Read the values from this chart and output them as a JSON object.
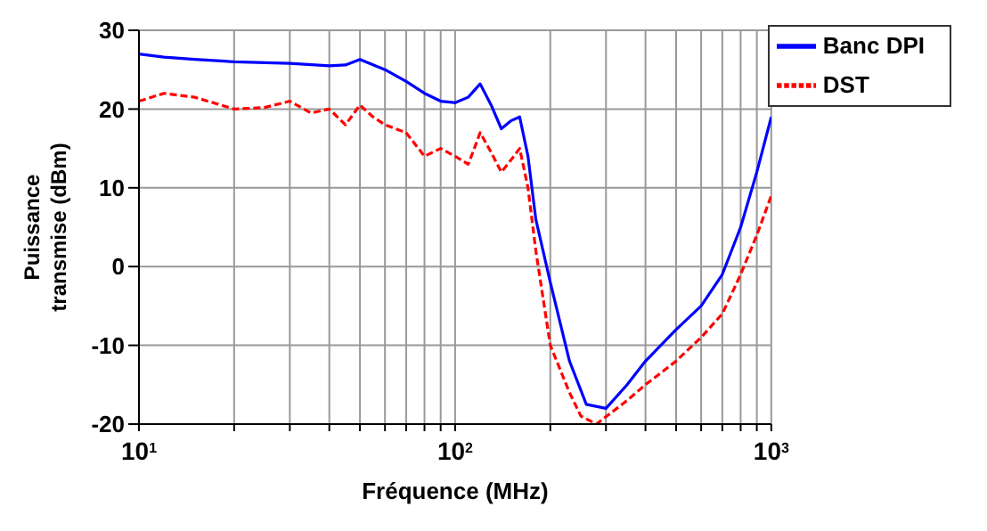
{
  "chart_data": {
    "type": "line",
    "xlabel": "Fréquence (MHz)",
    "ylabel": "Puissance transmise (dBm)",
    "log": "x",
    "grid": true,
    "legend": "top right",
    "marker": "none",
    "xlim": [
      10,
      1000
    ],
    "ylim": [
      -20,
      30
    ],
    "yticks": [
      -20,
      -10,
      0,
      10,
      20,
      30
    ],
    "xticks": [
      {
        "value": 10,
        "label": "10$^{1}$"
      },
      {
        "value": 20,
        "label": null
      },
      {
        "value": 30,
        "label": null
      },
      {
        "value": 40,
        "label": null
      },
      {
        "value": 50,
        "label": null
      },
      {
        "value": 60,
        "label": null
      },
      {
        "value": 70,
        "label": null
      },
      {
        "value": 80,
        "label": null
      },
      {
        "value": 90,
        "label": null
      },
      {
        "value": 100,
        "label": "10$^{2}$"
      },
      {
        "value": 200,
        "label": null
      },
      {
        "value": 300,
        "label": null
      },
      {
        "value": 400,
        "label": null
      },
      {
        "value": 500,
        "label": null
      },
      {
        "value": 600,
        "label": null
      },
      {
        "value": 700,
        "label": null
      },
      {
        "value": 800,
        "label": null
      },
      {
        "value": 900,
        "label": null
      },
      {
        "value": 1000,
        "label": "10$^{3}$"
      }
    ],
    "series": [
      {
        "name": "Banc DPI",
        "color": "#0000ff",
        "line_style": "solid",
        "x": [
          10,
          12,
          15,
          20,
          30,
          40,
          45,
          50,
          60,
          70,
          80,
          90,
          100,
          110,
          120,
          130,
          140,
          150,
          160,
          170,
          180,
          200,
          230,
          260,
          300,
          350,
          400,
          500,
          600,
          700,
          800,
          900,
          1000
        ],
        "values": [
          27,
          26.6,
          26.3,
          26,
          25.8,
          25.5,
          25.6,
          26.3,
          25,
          23.5,
          22,
          21,
          20.8,
          21.5,
          23.2,
          20.5,
          17.5,
          18.5,
          19,
          14,
          6,
          -2,
          -12,
          -17.5,
          -18,
          -15,
          -12,
          -8,
          -5,
          -1,
          5,
          12,
          19
        ]
      },
      {
        "name": "DST",
        "color": "#ff0000",
        "line_style": "dashed",
        "x": [
          10,
          12,
          15,
          20,
          25,
          30,
          35,
          40,
          45,
          50,
          55,
          60,
          70,
          80,
          90,
          100,
          110,
          115,
          120,
          130,
          140,
          150,
          160,
          170,
          180,
          200,
          230,
          250,
          280,
          350,
          400,
          500,
          600,
          700,
          800,
          900,
          1000
        ],
        "values": [
          21,
          22,
          21.5,
          20,
          20.2,
          21,
          19.5,
          20,
          18,
          20.5,
          19,
          18,
          17,
          14,
          15,
          14,
          13,
          15,
          17,
          14.5,
          12,
          13.5,
          15,
          10,
          2,
          -10,
          -16,
          -19,
          -20,
          -17,
          -15,
          -12,
          -9,
          -6,
          -1,
          4,
          9
        ]
      }
    ]
  }
}
